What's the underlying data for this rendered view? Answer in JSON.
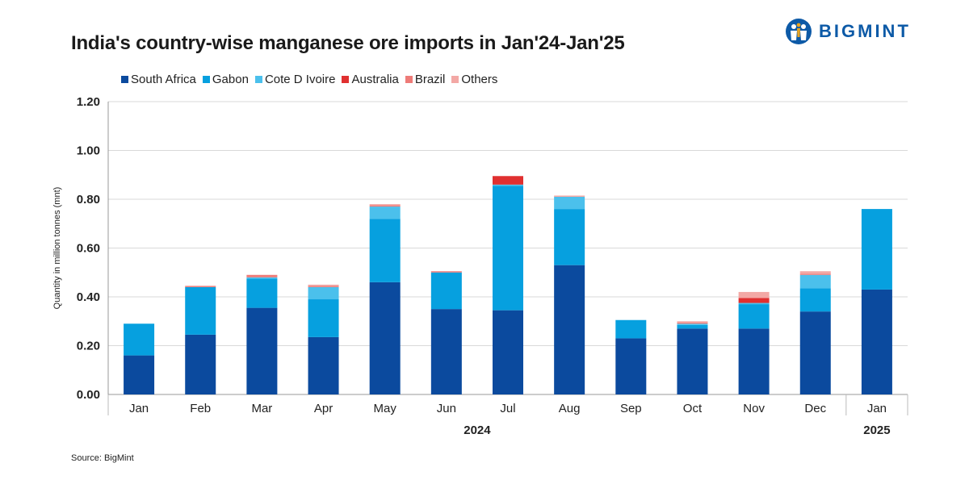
{
  "header": {
    "title": "India's country-wise manganese ore imports in Jan'24-Jan'25",
    "brand": "BIGMINT",
    "source": "Source: BigMint"
  },
  "chart_data": {
    "type": "bar",
    "stacked": true,
    "title": "India's country-wise manganese ore imports in Jan'24-Jan'25",
    "ylabel": "Quantity in million tonnes (mnt)",
    "xlabel": "",
    "ylim": [
      0,
      1.2
    ],
    "yticks": [
      "0.00",
      "0.20",
      "0.40",
      "0.60",
      "0.80",
      "1.00",
      "1.20"
    ],
    "ytick_values": [
      0,
      0.2,
      0.4,
      0.6,
      0.8,
      1.0,
      1.2
    ],
    "grid": true,
    "legend_position": "top",
    "categories": [
      "Jan",
      "Feb",
      "Mar",
      "Apr",
      "May",
      "Jun",
      "Jul",
      "Aug",
      "Sep",
      "Oct",
      "Nov",
      "Dec",
      "Jan"
    ],
    "year_groups": [
      {
        "label": "2024",
        "from": 0,
        "to": 11
      },
      {
        "label": "2025",
        "from": 12,
        "to": 12
      }
    ],
    "series": [
      {
        "name": "South Africa",
        "color": "#0b4a9e",
        "values": [
          0.16,
          0.245,
          0.355,
          0.235,
          0.46,
          0.35,
          0.345,
          0.53,
          0.23,
          0.27,
          0.27,
          0.34,
          0.43
        ]
      },
      {
        "name": "Gabon",
        "color": "#06a0df",
        "values": [
          0.13,
          0.195,
          0.12,
          0.155,
          0.26,
          0.15,
          0.51,
          0.23,
          0.075,
          0.015,
          0.1,
          0.095,
          0.33
        ]
      },
      {
        "name": "Cote D Ivoire",
        "color": "#4bc0ec",
        "values": [
          0.0,
          0.0,
          0.005,
          0.05,
          0.05,
          0.0,
          0.005,
          0.05,
          0.0,
          0.005,
          0.005,
          0.055,
          0.0
        ]
      },
      {
        "name": "Australia",
        "color": "#e03030",
        "values": [
          0.0,
          0.0,
          0.0,
          0.0,
          0.0,
          0.0,
          0.035,
          0.0,
          0.0,
          0.0,
          0.02,
          0.0,
          0.0
        ]
      },
      {
        "name": "Brazil",
        "color": "#ee7b78",
        "values": [
          0.0,
          0.005,
          0.01,
          0.005,
          0.005,
          0.005,
          0.0,
          0.0,
          0.0,
          0.005,
          0.0,
          0.005,
          0.0
        ]
      },
      {
        "name": "Others",
        "color": "#f3a8a5",
        "values": [
          0.0,
          0.0,
          0.0,
          0.005,
          0.005,
          0.0,
          0.0,
          0.005,
          0.0,
          0.005,
          0.025,
          0.01,
          0.0
        ]
      }
    ]
  }
}
